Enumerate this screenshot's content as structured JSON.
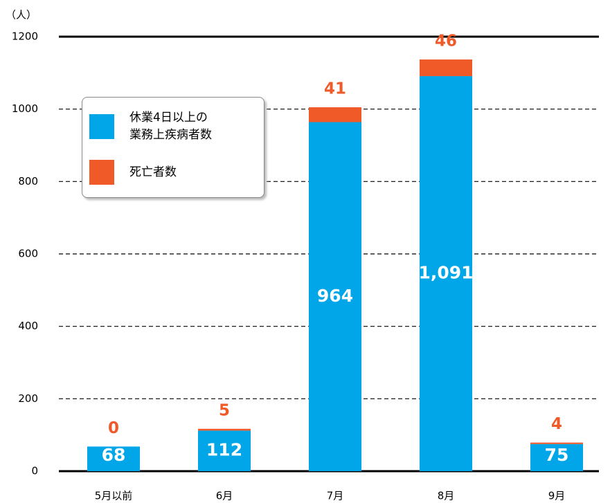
{
  "chart_data": {
    "type": "stacked_bar",
    "y_label": "（人）",
    "categories": [
      "5月以前",
      "6月",
      "7月",
      "8月",
      "9月"
    ],
    "series": [
      {
        "name": "休業4日以上の業務上疾病者数",
        "color": "#00a6e8",
        "values": [
          68,
          112,
          964,
          1091,
          75
        ],
        "value_labels": [
          "68",
          "112",
          "964",
          "1,091",
          "75"
        ]
      },
      {
        "name": "死亡者数",
        "color": "#f05a28",
        "values": [
          0,
          5,
          41,
          46,
          4
        ]
      }
    ],
    "ylim": [
      0,
      1200
    ],
    "yticks": [
      0,
      200,
      400,
      600,
      800,
      1000,
      1200
    ],
    "grid": true
  }
}
